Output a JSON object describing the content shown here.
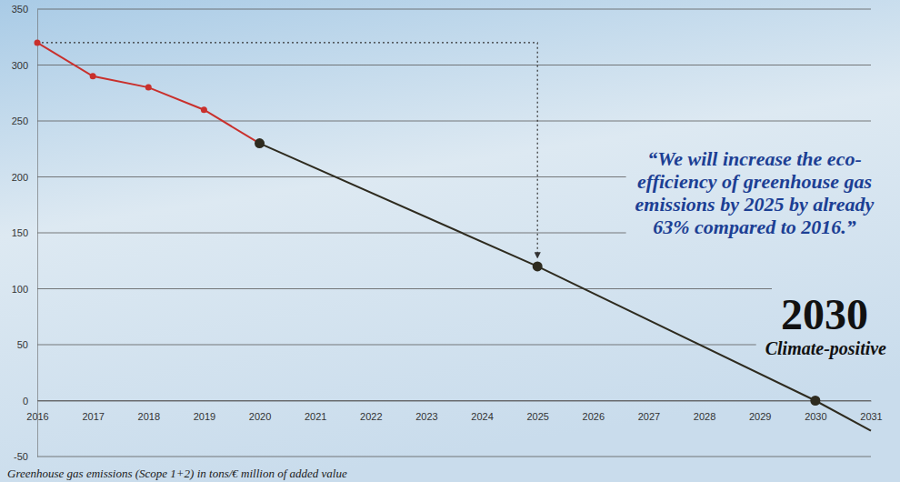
{
  "chart_data": {
    "type": "line",
    "ylabel": "Greenhouse gas emissions (Scope 1+2) in tons/€ million of added value",
    "xlim": [
      2016,
      2031
    ],
    "xticks": [
      2016,
      2017,
      2018,
      2019,
      2020,
      2021,
      2022,
      2023,
      2024,
      2025,
      2026,
      2027,
      2028,
      2029,
      2030,
      2031
    ],
    "ylim": [
      -50,
      350
    ],
    "yticks": [
      -50,
      0,
      50,
      100,
      150,
      200,
      250,
      300,
      350
    ],
    "grid": true,
    "series": [
      {
        "color": "#c9302c",
        "marker": "circle",
        "line_style": "solid",
        "x": [
          2016,
          2017,
          2018,
          2019,
          2020
        ],
        "values": [
          320,
          290,
          280,
          260,
          230
        ]
      },
      {
        "color": "#2e2b1f",
        "marker": "circle",
        "line_style": "solid",
        "x": [
          2020,
          2025,
          2030
        ],
        "values": [
          230,
          120,
          0
        ]
      },
      {
        "color": "#2e2b1f",
        "marker": "none",
        "line_style": "solid",
        "x": [
          2030,
          2031
        ],
        "values": [
          0,
          -27
        ]
      }
    ],
    "annotations": [
      "“We will increase the eco-efficiency of greenhouse gas emissions by 2025 by already 63% compared to 2016.”",
      "2030",
      "Climate-positive"
    ]
  }
}
